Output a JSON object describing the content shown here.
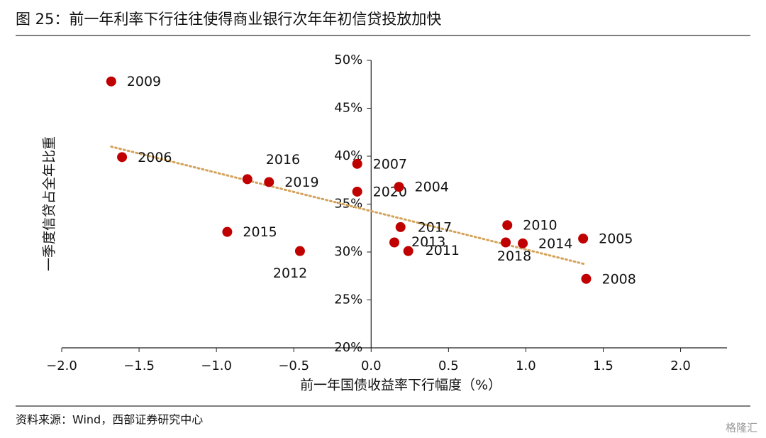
{
  "chart_data": {
    "type": "scatter",
    "title": "图 25：前一年利率下行往往使得商业银行次年年初信贷投放加快",
    "x_label": "前一年国债收益率下行幅度（%）",
    "y_label": "一季度信贷占全年比重",
    "source": "资料来源：Wind，西部证券研究中心",
    "watermark": "格隆汇",
    "color": "#c00000",
    "labels": [
      "2009",
      "2006",
      "2016",
      "2019",
      "2015",
      "2012",
      "2007",
      "2020",
      "2004",
      "2017",
      "2013",
      "2011",
      "2010",
      "2018",
      "2014",
      "2005",
      "2008"
    ],
    "x": [
      -1.68,
      -1.61,
      -0.8,
      -0.66,
      -0.93,
      -0.46,
      -0.09,
      -0.09,
      0.18,
      0.19,
      0.15,
      0.24,
      0.88,
      0.87,
      0.98,
      1.37,
      1.39
    ],
    "values": [
      47.8,
      39.9,
      37.6,
      37.3,
      32.1,
      30.1,
      39.2,
      36.3,
      36.8,
      32.6,
      31.0,
      30.1,
      32.8,
      31.0,
      30.9,
      31.4,
      27.2
    ],
    "trendline": {
      "color": "#d4a35a",
      "x": [
        -1.68,
        1.39
      ],
      "values": [
        41.0,
        28.7
      ]
    },
    "xlim": [
      -2.0,
      2.3
    ],
    "xticks": [
      {
        "value": -2,
        "label": "−2.0"
      },
      {
        "value": -1.5,
        "label": "−1.5"
      },
      {
        "value": -1,
        "label": "−1.0"
      },
      {
        "value": -0.5,
        "label": "−0.5"
      },
      {
        "value": 0,
        "label": "0.0"
      },
      {
        "value": 0.5,
        "label": "0.5"
      },
      {
        "value": 1,
        "label": "1.0"
      },
      {
        "value": 1.5,
        "label": "1.5"
      },
      {
        "value": 2,
        "label": "2.0"
      }
    ],
    "ylim": [
      20,
      50
    ],
    "yticks": [
      {
        "value": 20,
        "label": "20%"
      },
      {
        "value": 25,
        "label": "25%"
      },
      {
        "value": 30,
        "label": "30%"
      },
      {
        "value": 35,
        "label": "35%"
      },
      {
        "value": 40,
        "label": "40%"
      },
      {
        "value": 45,
        "label": "45%"
      },
      {
        "value": 50,
        "label": "50%"
      }
    ]
  }
}
